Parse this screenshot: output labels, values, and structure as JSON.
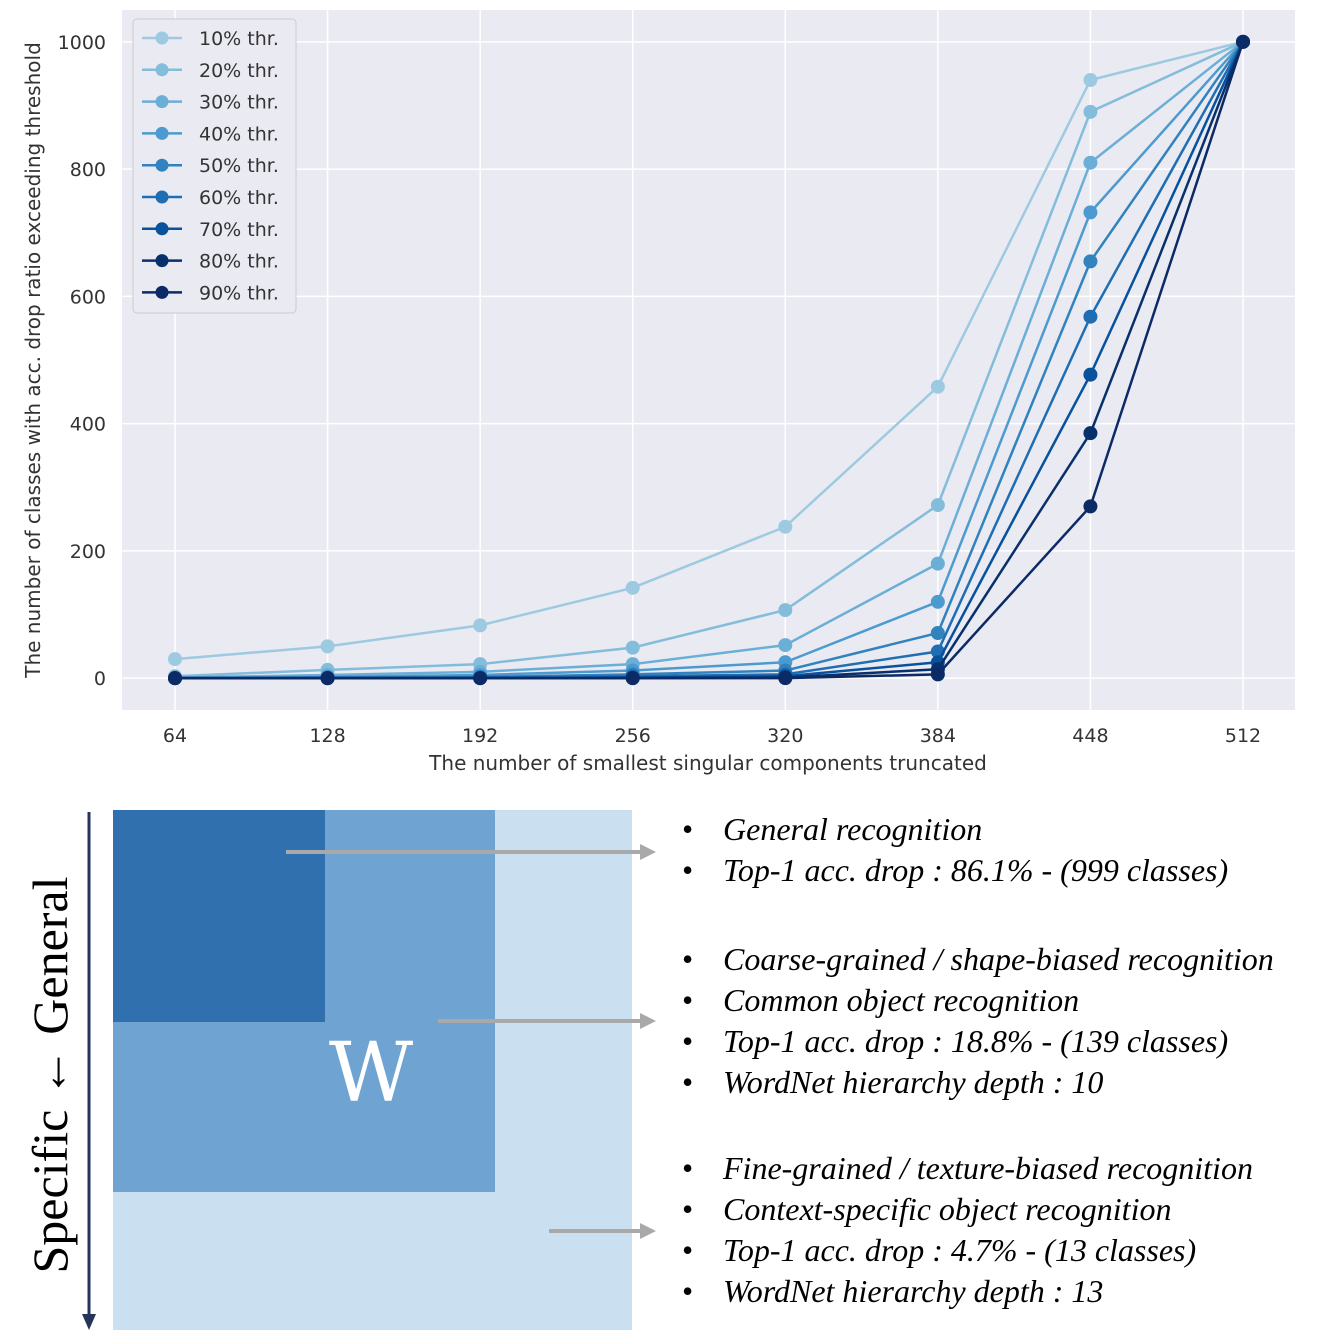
{
  "chart_data": {
    "type": "line",
    "title": "",
    "xlabel": "The number of smallest singular components truncated",
    "ylabel": "The number of classes with acc. drop ratio exceeding threshold",
    "x": [
      64,
      128,
      192,
      256,
      320,
      384,
      448,
      512
    ],
    "x_tick_labels": [
      "64",
      "128",
      "192",
      "256",
      "320",
      "384",
      "448",
      "512"
    ],
    "y_ticks": [
      0,
      200,
      400,
      600,
      800,
      1000
    ],
    "ylim": [
      -50,
      1050
    ],
    "grid": true,
    "legend_position": "top-left",
    "series": [
      {
        "name": "10% thr.",
        "color": "#9ecae1",
        "values": [
          30,
          50,
          83,
          142,
          238,
          458,
          940,
          1000
        ]
      },
      {
        "name": "20% thr.",
        "color": "#84bcdb",
        "values": [
          3,
          13,
          22,
          48,
          107,
          272,
          890,
          1000
        ]
      },
      {
        "name": "30% thr.",
        "color": "#6baed6",
        "values": [
          1,
          5,
          10,
          22,
          52,
          180,
          810,
          1000
        ]
      },
      {
        "name": "40% thr.",
        "color": "#4d9ad0",
        "values": [
          0,
          2,
          5,
          12,
          25,
          120,
          732,
          1000
        ]
      },
      {
        "name": "50% thr.",
        "color": "#3182bd",
        "values": [
          0,
          1,
          2,
          6,
          12,
          71,
          655,
          1000
        ]
      },
      {
        "name": "60% thr.",
        "color": "#1f6eb3",
        "values": [
          0,
          0,
          1,
          3,
          6,
          42,
          568,
          1000
        ]
      },
      {
        "name": "70% thr.",
        "color": "#08519c",
        "values": [
          0,
          0,
          0,
          1,
          3,
          25,
          477,
          1000
        ]
      },
      {
        "name": "80% thr.",
        "color": "#08306b",
        "values": [
          0,
          0,
          0,
          0,
          1,
          14,
          385,
          1000
        ]
      },
      {
        "name": "90% thr.",
        "color": "#0c2a66",
        "values": [
          0,
          0,
          0,
          0,
          0,
          6,
          270,
          1000
        ]
      }
    ]
  },
  "diagram": {
    "matrix_label": "W",
    "side_label": "Specific ← General",
    "colors": {
      "inner": "#3070ae",
      "middle": "#6fa3d2",
      "outer": "#cadff0",
      "arrow": "#a9a9a9",
      "axis_arrow": "#24345a"
    },
    "groups": [
      {
        "items": [
          "General recognition",
          "Top-1 acc. drop : 86.1% - (999 classes)"
        ]
      },
      {
        "items": [
          "Coarse-grained / shape-biased recognition",
          "Common object recognition",
          "Top-1 acc. drop : 18.8% - (139 classes)",
          "WordNet hierarchy depth : 10"
        ]
      },
      {
        "items": [
          "Fine-grained / texture-biased recognition",
          "Context-specific object recognition",
          "Top-1 acc. drop : 4.7% - (13 classes)",
          "WordNet hierarchy depth : 13"
        ]
      }
    ]
  }
}
